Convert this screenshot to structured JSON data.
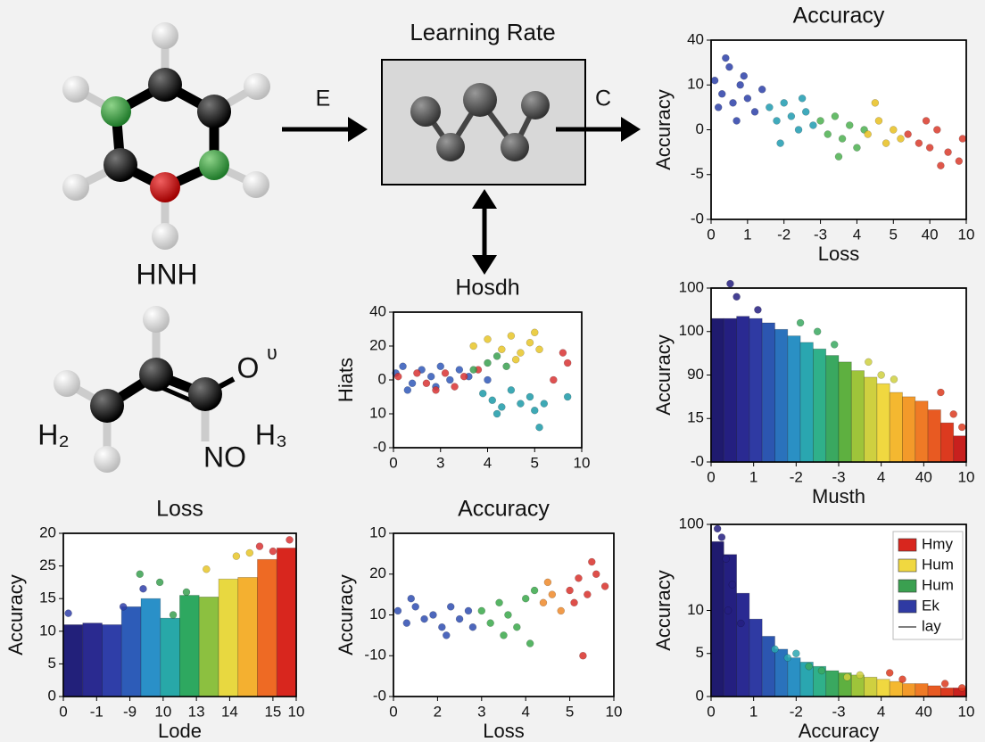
{
  "diagram": {
    "molecule_1_label": "HNH",
    "molecule_2_labels": [
      "O",
      "ʋ",
      "H₂",
      "H₃",
      "NO"
    ],
    "flow_title": "Learning Rate",
    "arrow_left_label": "E",
    "arrow_right_label": "C"
  },
  "chart_data": [
    {
      "type": "scatter",
      "title": "Accuracy",
      "x_label": "Loss",
      "y_label": "Accuracy",
      "xlim": [
        0,
        7
      ],
      "xticks": [
        0,
        1,
        {
          "value": 2,
          "label": "-2"
        },
        {
          "value": 3,
          "label": "-3"
        },
        4,
        5,
        {
          "value": 6,
          "label": "40"
        },
        {
          "value": 7,
          "label": "10"
        }
      ],
      "ylim": [
        0,
        4
      ],
      "yticks": [
        {
          "value": 0,
          "label": "-0"
        },
        {
          "value": 1,
          "label": "-5"
        },
        {
          "value": 2,
          "label": "0"
        },
        {
          "value": 3,
          "label": "10"
        },
        {
          "value": 4,
          "label": "40"
        }
      ],
      "series": [
        {
          "color": "#2b3fa8",
          "x": [
            0.1,
            0.3,
            0.5,
            0.6,
            0.8,
            0.2,
            1.0,
            1.2,
            0.4,
            1.4,
            0.7,
            0.9
          ],
          "values": [
            3.1,
            2.8,
            3.4,
            2.6,
            3.0,
            2.5,
            2.7,
            2.4,
            3.6,
            2.9,
            2.2,
            3.2
          ]
        },
        {
          "color": "#1f9bb0",
          "x": [
            1.6,
            1.8,
            2.0,
            2.2,
            2.4,
            2.6,
            2.8,
            1.9,
            2.5
          ],
          "values": [
            2.5,
            2.2,
            2.6,
            2.3,
            2.0,
            2.4,
            2.1,
            1.7,
            2.7
          ]
        },
        {
          "color": "#4cb050",
          "x": [
            3.0,
            3.2,
            3.4,
            3.6,
            3.8,
            4.0,
            3.5,
            4.2
          ],
          "values": [
            2.2,
            1.9,
            2.3,
            1.8,
            2.1,
            1.6,
            1.4,
            2.0
          ]
        },
        {
          "color": "#e8c020",
          "x": [
            4.3,
            4.6,
            4.8,
            5.0,
            5.2,
            4.5
          ],
          "values": [
            1.9,
            2.2,
            1.7,
            2.0,
            1.8,
            2.6
          ]
        },
        {
          "color": "#d93a2a",
          "x": [
            5.4,
            5.7,
            6.0,
            6.2,
            6.5,
            6.8,
            6.3,
            6.9,
            5.9
          ],
          "values": [
            1.9,
            1.7,
            1.6,
            2.0,
            1.5,
            1.3,
            1.2,
            1.8,
            2.2
          ]
        }
      ]
    },
    {
      "type": "scatter",
      "title": "Hosdh",
      "y_label": "Hiats",
      "xlim": [
        0,
        4
      ],
      "xticks": [
        0,
        {
          "value": 1,
          "label": "3"
        },
        {
          "value": 2,
          "label": "4"
        },
        {
          "value": 3,
          "label": "5"
        },
        {
          "value": 4,
          "label": "10"
        }
      ],
      "ylim": [
        0,
        4
      ],
      "yticks": [
        {
          "value": 0,
          "label": "-0"
        },
        {
          "value": 1,
          "label": "10"
        },
        {
          "value": 2,
          "label": "0"
        },
        {
          "value": 3,
          "label": "20"
        },
        {
          "value": 4,
          "label": "40"
        }
      ],
      "series": [
        {
          "color": "#3058b8",
          "x": [
            0.05,
            0.2,
            0.4,
            0.6,
            0.8,
            1.0,
            1.2,
            1.4,
            0.3,
            0.9,
            1.6,
            2.0
          ],
          "values": [
            2.2,
            2.4,
            1.9,
            2.3,
            2.1,
            2.4,
            2.0,
            2.3,
            1.7,
            1.8,
            2.1,
            2.0
          ]
        },
        {
          "color": "#d83232",
          "x": [
            0.1,
            0.5,
            0.7,
            1.1,
            1.3,
            1.5,
            1.8,
            0.9,
            3.6,
            3.7,
            3.4
          ],
          "values": [
            2.1,
            2.2,
            1.9,
            2.2,
            1.8,
            2.1,
            2.3,
            1.7,
            2.8,
            2.5,
            2.0
          ]
        },
        {
          "color": "#1c9aa8",
          "x": [
            1.9,
            2.1,
            2.3,
            2.5,
            2.7,
            2.9,
            3.0,
            3.2,
            2.2,
            3.1,
            3.7
          ],
          "values": [
            1.6,
            1.4,
            1.2,
            1.7,
            1.3,
            1.5,
            1.1,
            1.3,
            1.0,
            0.6,
            1.5
          ]
        },
        {
          "color": "#3aa050",
          "x": [
            2.0,
            2.2,
            2.4,
            1.7
          ],
          "values": [
            2.5,
            2.7,
            2.4,
            2.3
          ]
        },
        {
          "color": "#e8c528",
          "x": [
            1.7,
            2.0,
            2.3,
            2.5,
            2.7,
            2.9,
            3.0,
            3.1,
            2.6
          ],
          "values": [
            3.0,
            3.2,
            2.9,
            3.3,
            2.8,
            3.1,
            3.4,
            2.9,
            2.6
          ]
        }
      ]
    },
    {
      "type": "bar",
      "x_label": "Musth",
      "y_label": "Accuracy",
      "xlim": [
        0,
        6
      ],
      "xticks": [
        0,
        1,
        {
          "value": 2,
          "label": "-2"
        },
        {
          "value": 3,
          "label": "-3"
        },
        4,
        {
          "value": 5,
          "label": "40"
        },
        {
          "value": 6,
          "label": "10"
        }
      ],
      "ylim": [
        0,
        4
      ],
      "yticks": [
        {
          "value": 0,
          "label": "-0"
        },
        {
          "value": 1,
          "label": "15"
        },
        {
          "value": 2,
          "label": "90"
        },
        {
          "value": 3,
          "label": "100"
        },
        {
          "value": 4,
          "label": "100"
        }
      ],
      "x": [
        0.15,
        0.45,
        0.75,
        1.05,
        1.35,
        1.65,
        1.95,
        2.25,
        2.55,
        2.85,
        3.15,
        3.45,
        3.75,
        4.05,
        4.35,
        4.65,
        4.95,
        5.25,
        5.55,
        5.85
      ],
      "values": [
        3.3,
        3.3,
        3.35,
        3.3,
        3.2,
        3.05,
        2.9,
        2.75,
        2.6,
        2.45,
        2.3,
        2.1,
        1.95,
        1.8,
        1.6,
        1.5,
        1.4,
        1.2,
        0.9,
        0.6
      ],
      "colors": [
        "#1f1a6e",
        "#241f80",
        "#2a2a92",
        "#2f3aa3",
        "#2c56b0",
        "#2a72bc",
        "#2a90c4",
        "#2aa6b0",
        "#2fb08a",
        "#3aa860",
        "#5eb040",
        "#9ec43a",
        "#cfd040",
        "#f0d840",
        "#f4b830",
        "#f39a2a",
        "#ef7a26",
        "#e85a22",
        "#dc3a1f",
        "#c8201e"
      ],
      "series": [
        {
          "color": "#241f80",
          "x": [
            0.45,
            0.6,
            1.1
          ],
          "values": [
            4.1,
            3.8,
            3.5
          ]
        },
        {
          "color": "#3aa860",
          "x": [
            2.1,
            2.5,
            2.9
          ],
          "values": [
            3.2,
            3.0,
            2.7
          ]
        },
        {
          "color": "#cfd040",
          "x": [
            3.7,
            4.0,
            4.3
          ],
          "values": [
            2.3,
            2.0,
            1.9
          ]
        },
        {
          "color": "#dc3a1f",
          "x": [
            5.4,
            5.7,
            5.9
          ],
          "values": [
            1.6,
            1.1,
            0.8
          ]
        }
      ]
    },
    {
      "type": "bar",
      "title": "Loss",
      "x_label": "Lode",
      "y_label": "Accuracy",
      "xlim": [
        0,
        7
      ],
      "xticks": [
        0,
        {
          "value": 1,
          "label": "-1"
        },
        {
          "value": 2,
          "label": "-9"
        },
        {
          "value": 3,
          "label": "10"
        },
        {
          "value": 4,
          "label": "13"
        },
        {
          "value": 5,
          "label": "14"
        },
        {
          "value": 6.3,
          "label": "15"
        },
        {
          "value": 7,
          "label": "10"
        }
      ],
      "ylim": [
        0,
        5
      ],
      "yticks": [
        0,
        {
          "value": 1,
          "label": "5"
        },
        {
          "value": 2,
          "label": "10"
        },
        {
          "value": 3,
          "label": "15"
        },
        {
          "value": 4,
          "label": "25"
        },
        {
          "value": 5,
          "label": "20"
        }
      ],
      "x": [
        0.29,
        0.875,
        1.46,
        2.04,
        2.625,
        3.21,
        3.79,
        4.375,
        4.96,
        5.54,
        6.125,
        6.71
      ],
      "values": [
        2.2,
        2.25,
        2.2,
        2.75,
        3.0,
        2.4,
        3.1,
        3.05,
        3.6,
        3.65,
        4.2,
        4.55
      ],
      "colors": [
        "#22207a",
        "#2a2a90",
        "#2f3ea8",
        "#2d5cb8",
        "#2a90c8",
        "#28a8a8",
        "#2ea860",
        "#8cc040",
        "#e8d840",
        "#f4b030",
        "#ee6a24",
        "#d8261e"
      ],
      "series": [
        {
          "color": "#2f3ea8",
          "x": [
            0.15,
            1.8,
            2.4
          ],
          "values": [
            2.55,
            2.75,
            3.3
          ]
        },
        {
          "color": "#3aa050",
          "x": [
            2.3,
            2.9,
            3.3,
            3.7
          ],
          "values": [
            3.75,
            3.5,
            2.5,
            3.2
          ]
        },
        {
          "color": "#e8c528",
          "x": [
            4.3,
            5.2,
            5.6
          ],
          "values": [
            3.9,
            4.3,
            4.4
          ]
        },
        {
          "color": "#d83232",
          "x": [
            5.9,
            6.3,
            6.8
          ],
          "values": [
            4.6,
            4.45,
            4.8
          ]
        }
      ]
    },
    {
      "type": "scatter",
      "title": "Accuracy",
      "x_label": "Loss",
      "y_label": "Accuracy",
      "xlim": [
        0,
        5
      ],
      "xticks": [
        0,
        {
          "value": 1,
          "label": "2"
        },
        {
          "value": 2,
          "label": "3"
        },
        {
          "value": 3,
          "label": "4"
        },
        {
          "value": 4,
          "label": "5"
        },
        {
          "value": 5,
          "label": "10"
        }
      ],
      "ylim": [
        0,
        4
      ],
      "yticks": [
        {
          "value": 0,
          "label": "-0"
        },
        {
          "value": 1,
          "label": "-10"
        },
        {
          "value": 2,
          "label": "10"
        },
        {
          "value": 3,
          "label": "20"
        },
        {
          "value": 4,
          "label": "10"
        }
      ],
      "series": [
        {
          "color": "#2e4cb0",
          "x": [
            0.1,
            0.3,
            0.5,
            0.7,
            0.9,
            1.1,
            1.3,
            1.5,
            1.7,
            0.4,
            1.2,
            1.8
          ],
          "values": [
            2.1,
            1.8,
            2.2,
            1.9,
            2.0,
            1.7,
            2.2,
            1.9,
            2.1,
            2.4,
            1.5,
            1.7
          ]
        },
        {
          "color": "#3aa84a",
          "x": [
            2.0,
            2.2,
            2.4,
            2.6,
            2.8,
            3.0,
            2.5,
            3.2,
            3.1
          ],
          "values": [
            2.1,
            1.8,
            2.3,
            2.0,
            1.7,
            2.4,
            1.5,
            2.6,
            1.3
          ]
        },
        {
          "color": "#ef8a2a",
          "x": [
            3.4,
            3.6,
            3.8,
            3.5
          ],
          "values": [
            2.3,
            2.5,
            2.1,
            2.8
          ]
        },
        {
          "color": "#d8302a",
          "x": [
            4.0,
            4.2,
            4.4,
            4.6,
            4.8,
            4.1,
            4.5,
            4.3
          ],
          "values": [
            2.6,
            2.9,
            2.5,
            3.0,
            2.7,
            2.3,
            3.3,
            1.0
          ]
        }
      ]
    },
    {
      "type": "bar",
      "x_label": "Accuracy",
      "y_label": "Accuracy",
      "xlim": [
        0,
        6
      ],
      "xticks": [
        0,
        1,
        {
          "value": 2,
          "label": "-2"
        },
        {
          "value": 3,
          "label": "-3"
        },
        4,
        {
          "value": 5,
          "label": "40"
        },
        {
          "value": 6,
          "label": "10"
        }
      ],
      "ylim": [
        0,
        4
      ],
      "yticks": [
        0,
        {
          "value": 1,
          "label": "5"
        },
        {
          "value": 2,
          "label": "10"
        },
        {
          "value": 4,
          "label": "100"
        }
      ],
      "x": [
        0.15,
        0.45,
        0.75,
        1.05,
        1.35,
        1.65,
        1.95,
        2.25,
        2.55,
        2.85,
        3.15,
        3.45,
        3.75,
        4.05,
        4.35,
        4.65,
        4.95,
        5.25,
        5.55,
        5.85
      ],
      "values": [
        3.6,
        3.3,
        2.4,
        1.8,
        1.4,
        1.1,
        0.9,
        0.8,
        0.7,
        0.6,
        0.55,
        0.5,
        0.45,
        0.4,
        0.35,
        0.3,
        0.3,
        0.25,
        0.2,
        0.2
      ],
      "colors": [
        "#1f1a6e",
        "#241f80",
        "#2a2a92",
        "#2f3aa3",
        "#2c56b0",
        "#2a72bc",
        "#2a90c4",
        "#2aa6b0",
        "#2fb08a",
        "#3aa860",
        "#5eb040",
        "#9ec43a",
        "#cfd040",
        "#f0d840",
        "#f4b830",
        "#f39a2a",
        "#ef7a26",
        "#e85a22",
        "#dc3a1f",
        "#c8201e"
      ],
      "series": [
        {
          "color": "#241f80",
          "x": [
            0.15,
            0.25,
            0.35,
            0.5,
            0.4,
            0.7
          ],
          "values": [
            3.9,
            3.7,
            3.2,
            2.6,
            2.0,
            1.7
          ]
        },
        {
          "color": "#2aa6b0",
          "x": [
            1.5,
            1.8,
            2.0
          ],
          "values": [
            1.1,
            0.9,
            1.0
          ]
        },
        {
          "color": "#3aa860",
          "x": [
            2.3,
            2.6
          ],
          "values": [
            0.7,
            0.6
          ]
        },
        {
          "color": "#cfd040",
          "x": [
            3.2,
            3.5
          ],
          "values": [
            0.45,
            0.5
          ]
        },
        {
          "color": "#dc3a1f",
          "x": [
            4.2,
            4.5,
            5.5,
            5.9
          ],
          "values": [
            0.55,
            0.4,
            0.3,
            0.2
          ]
        }
      ],
      "legend": [
        {
          "name": "Hmy",
          "color": "#d8261e"
        },
        {
          "name": "Hum",
          "color": "#f0d840"
        },
        {
          "name": "Hum",
          "color": "#3aa050"
        },
        {
          "name": "Ek",
          "color": "#2f3aa3"
        },
        {
          "name": "lay",
          "color": "#555555",
          "marker": "line"
        }
      ]
    }
  ]
}
